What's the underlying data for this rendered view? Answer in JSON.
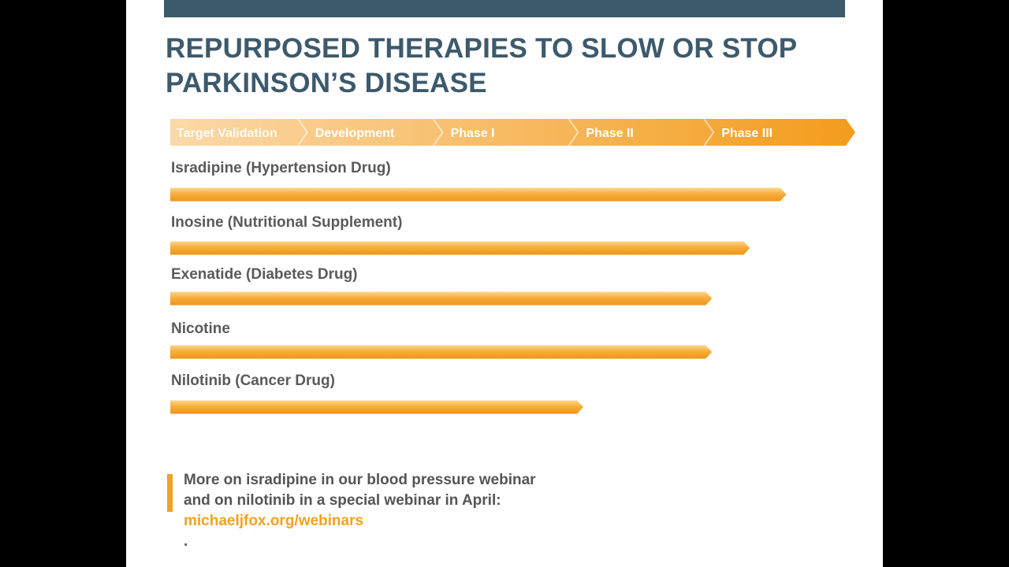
{
  "slide": {
    "title_line1": "REPURPOSED THERAPIES TO SLOW OR STOP",
    "title_line2": "PARKINSON’S DISEASE"
  },
  "chart_data": {
    "type": "bar",
    "orientation": "horizontal",
    "title": "",
    "stages": [
      "Target Validation",
      "Development",
      "Phase I",
      "Phase II",
      "Phase III"
    ],
    "categories": [
      "Isradipine (Hypertension Drug)",
      "Inosine (Nutritional Supplement)",
      "Exenatide (Diabetes Drug)",
      "Nicotine",
      "Nilotinib (Cancer Drug)"
    ],
    "values": [
      4.55,
      4.28,
      4.0,
      4.0,
      3.05
    ],
    "xlim": [
      0,
      5
    ],
    "colors": {
      "bar": "#f5a42b",
      "bar_highlight": "#fcd58c",
      "stage_light": "#fbd9a8",
      "stage_dark": "#f39c1c"
    }
  },
  "footnote": {
    "line1": "More on isradipine in our blood pressure webinar",
    "line2": "and on nilotinib in a special webinar in April: ",
    "link": "michaeljfox.org/webinars",
    "end": "."
  }
}
